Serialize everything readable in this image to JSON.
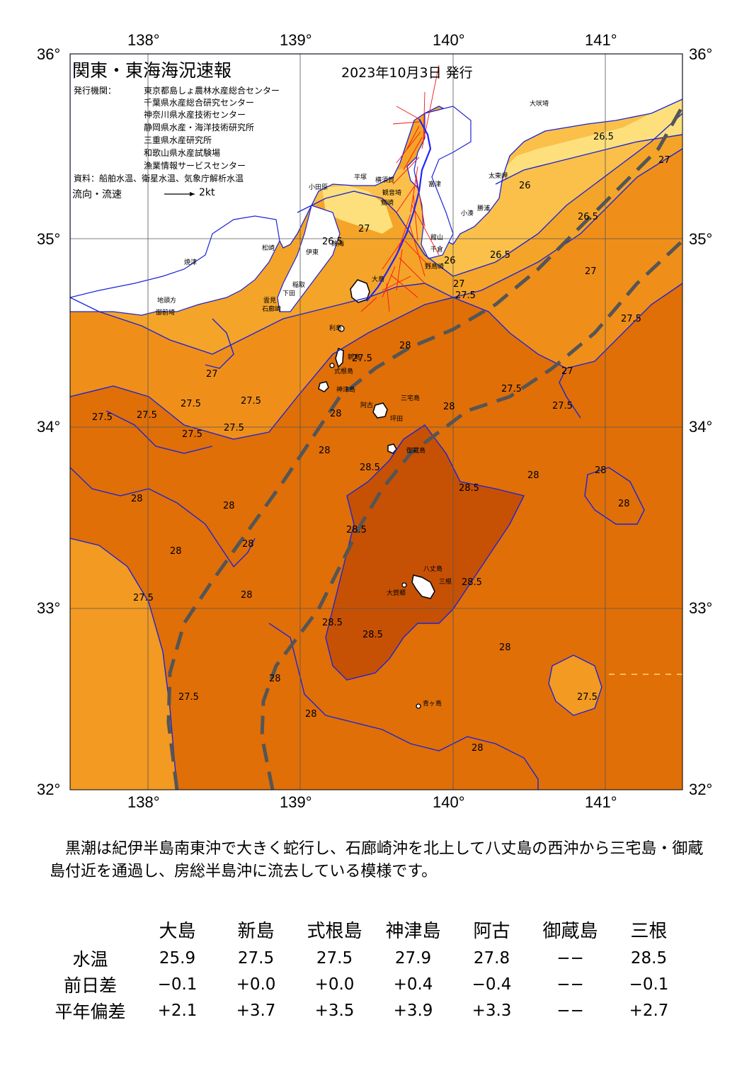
{
  "map": {
    "title": "関東・東海海況速報",
    "issue_date": "2023年10月3日 発行",
    "publisher_label": "発行機関：",
    "publishers": [
      "東京都島しょ農林水産総合センター",
      "千葉県水産総合研究センター",
      "神奈川県水産技術センター",
      "静岡県水産・海洋技術研究所",
      "三重県水産研究所",
      "和歌山県水産試験場",
      "漁業情報サービスセンター"
    ],
    "data_source": "資料：船舶水温、衛星水温、気象庁解析水温",
    "flow_label": "流向・流速",
    "flow_scale": "2kt",
    "lon_ticks": [
      "138°",
      "139°",
      "140°",
      "141°"
    ],
    "lat_ticks": [
      "36°",
      "35°",
      "34°",
      "33°",
      "32°"
    ],
    "place_names": [
      "大吠埼",
      "太東岬",
      "勝浦",
      "小湊",
      "富津",
      "館山",
      "千倉",
      "野島崎",
      "横須賀",
      "平塚",
      "小田原",
      "観音埼",
      "剱崎",
      "熱海",
      "伊東",
      "稲取",
      "下田",
      "石廊崎",
      "雲見",
      "松崎",
      "焼津",
      "御前埼",
      "地頭方",
      "大島",
      "利島",
      "新島",
      "式根島",
      "神津島",
      "三宅島",
      "阿古",
      "坪田",
      "御蔵島",
      "八丈島",
      "三根",
      "大賀郷",
      "青ヶ島"
    ],
    "contour_labels": [
      "26.5",
      "26",
      "27",
      "27.5",
      "28",
      "28.5"
    ],
    "colors": {
      "t26": "#fde07c",
      "t265": "#fbc04a",
      "t27": "#f4a428",
      "t275": "#ef8f1a",
      "t28": "#e06f08",
      "t285": "#c65104",
      "kuroshio": "#555555",
      "isotherm": "#1c24d8",
      "current_vectors": "#ff1010"
    }
  },
  "summary": "黒潮は紀伊半島南東沖で大きく蛇行し、石廊崎沖を北上して八丈島の西沖から三宅島・御蔵島付近を通過し、房総半島沖に流去している模様です。",
  "observations": {
    "stations": [
      "大島",
      "新島",
      "式根島",
      "神津島",
      "阿古",
      "御蔵島",
      "三根"
    ],
    "rows": [
      {
        "label": "水温",
        "values": [
          "25.9",
          "27.5",
          "27.5",
          "27.9",
          "27.8",
          "−−",
          "28.5"
        ]
      },
      {
        "label": "前日差",
        "values": [
          "−0.1",
          "+0.0",
          "+0.0",
          "+0.4",
          "−0.4",
          "−−",
          "−0.1"
        ]
      },
      {
        "label": "平年偏差",
        "values": [
          "+2.1",
          "+3.7",
          "+3.5",
          "+3.9",
          "+3.3",
          "−−",
          "+2.7"
        ]
      }
    ]
  }
}
